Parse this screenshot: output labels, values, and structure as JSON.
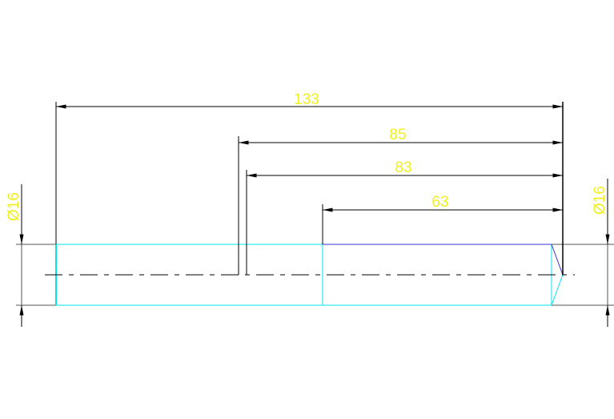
{
  "drawing": {
    "dimensions": {
      "overall_length": "133",
      "length_85": "85",
      "length_83": "83",
      "length_63": "63",
      "diameter_left": "Ø16",
      "diameter_right": "Ø16"
    },
    "colors": {
      "dimension_line": "#000000",
      "dimension_text": "#f0f020",
      "part_outline": "#00e5ee",
      "highlight_edge": "#3a2fd0",
      "extension_line": "#555555"
    }
  }
}
